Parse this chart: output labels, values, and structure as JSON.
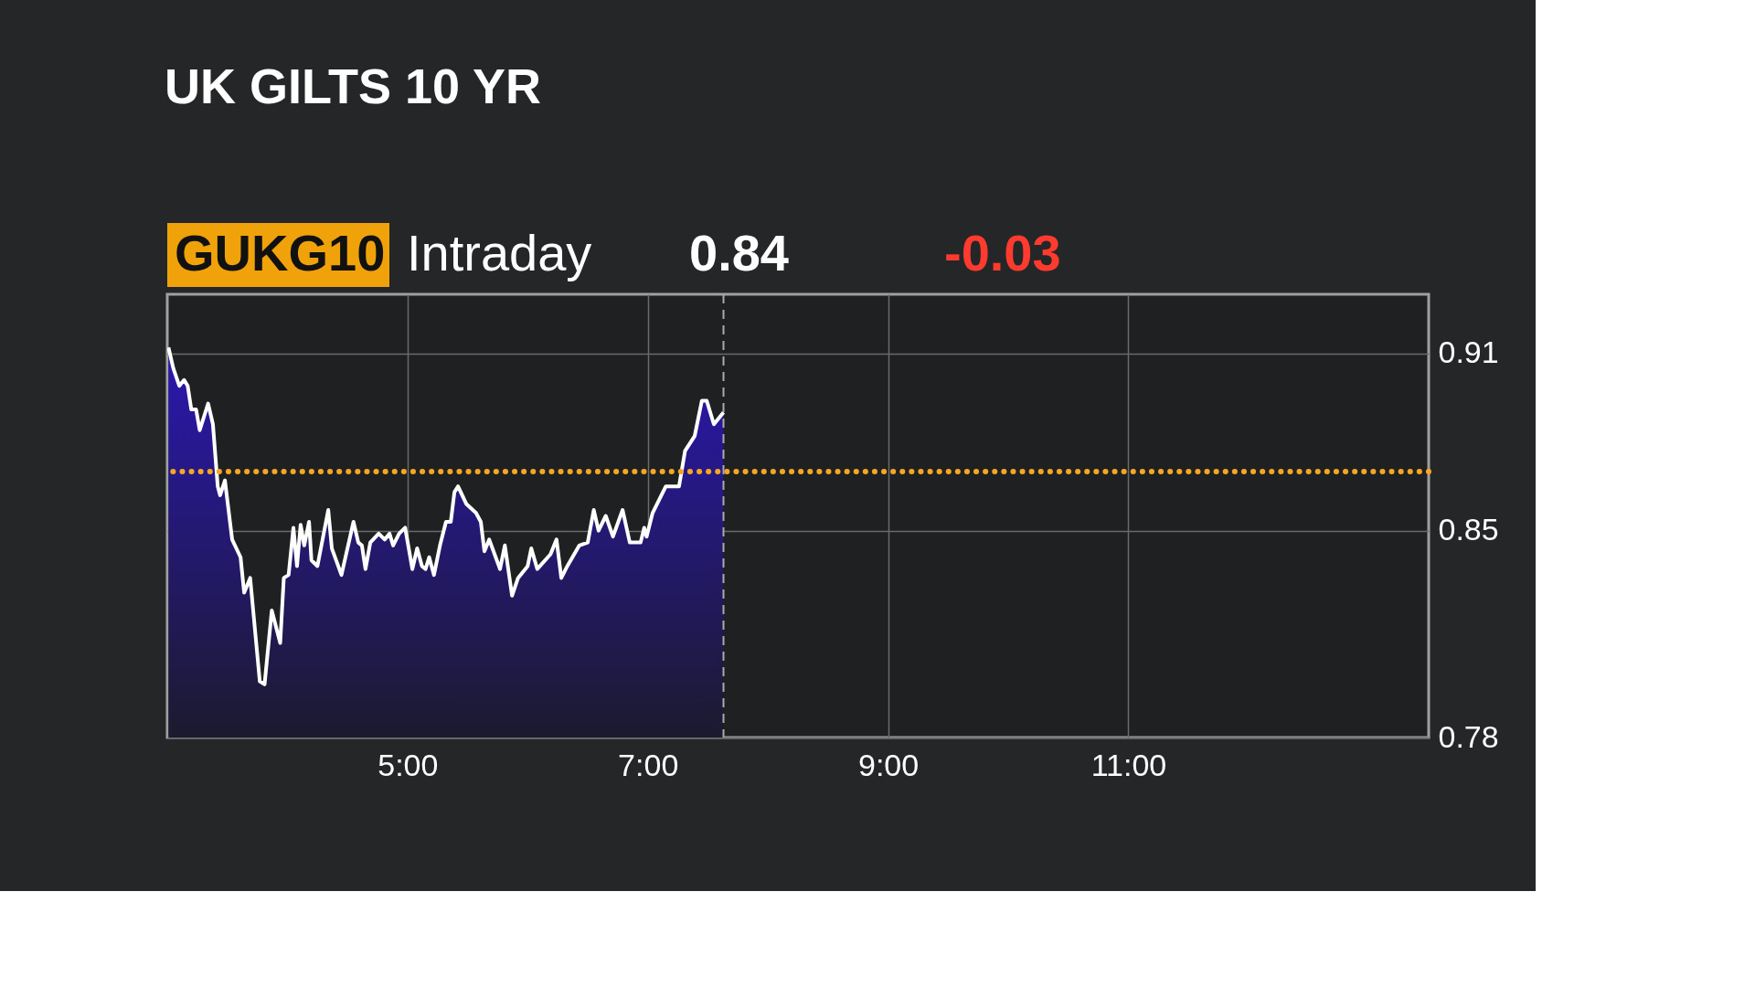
{
  "chart_data": {
    "type": "area",
    "title": "UK GILTS 10 YR",
    "annotations": [
      "GUKG10",
      "Intraday",
      "0.84",
      "-0.03"
    ],
    "x": [
      3.01,
      3.05,
      3.1,
      3.14,
      3.17,
      3.2,
      3.24,
      3.27,
      3.34,
      3.38,
      3.42,
      3.44,
      3.48,
      3.54,
      3.61,
      3.64,
      3.69,
      3.77,
      3.81,
      3.87,
      3.94,
      3.97,
      4.01,
      4.05,
      4.08,
      4.11,
      4.14,
      4.18,
      4.2,
      4.25,
      4.34,
      4.37,
      4.45,
      4.55,
      4.59,
      4.62,
      4.65,
      4.69,
      4.76,
      4.81,
      4.85,
      4.88,
      4.93,
      4.98,
      5.04,
      5.08,
      5.12,
      5.15,
      5.18,
      5.22,
      5.27,
      5.32,
      5.36,
      5.39,
      5.42,
      5.49,
      5.57,
      5.61,
      5.64,
      5.68,
      5.77,
      5.81,
      5.87,
      5.92,
      6.0,
      6.03,
      6.08,
      6.19,
      6.24,
      6.28,
      6.33,
      6.43,
      6.5,
      6.55,
      6.59,
      6.65,
      6.71,
      6.79,
      6.85,
      6.94,
      6.97,
      6.99,
      7.04,
      7.15,
      7.26,
      7.31,
      7.39,
      7.45,
      7.49,
      7.55,
      7.63
    ],
    "series": [
      {
        "color": "#ffffff",
        "values": [
          0.912,
          0.905,
          0.899,
          0.901,
          0.899,
          0.891,
          0.891,
          0.884,
          0.893,
          0.886,
          0.865,
          0.862,
          0.867,
          0.847,
          0.841,
          0.829,
          0.834,
          0.799,
          0.798,
          0.823,
          0.812,
          0.834,
          0.835,
          0.851,
          0.838,
          0.852,
          0.845,
          0.853,
          0.84,
          0.838,
          0.857,
          0.844,
          0.835,
          0.853,
          0.846,
          0.845,
          0.837,
          0.846,
          0.849,
          0.847,
          0.849,
          0.845,
          0.849,
          0.851,
          0.837,
          0.844,
          0.838,
          0.837,
          0.841,
          0.835,
          0.845,
          0.853,
          0.853,
          0.863,
          0.865,
          0.859,
          0.856,
          0.853,
          0.843,
          0.847,
          0.837,
          0.845,
          0.828,
          0.834,
          0.838,
          0.844,
          0.837,
          0.842,
          0.847,
          0.834,
          0.838,
          0.845,
          0.846,
          0.857,
          0.85,
          0.855,
          0.848,
          0.857,
          0.846,
          0.846,
          0.851,
          0.848,
          0.856,
          0.865,
          0.865,
          0.877,
          0.882,
          0.894,
          0.894,
          0.886,
          0.89
        ]
      }
    ],
    "xlim": [
      3.0,
      13.5
    ],
    "ylim": [
      0.78,
      0.93
    ],
    "xticks": [
      {
        "value": 5,
        "label": "5:00"
      },
      {
        "value": 7,
        "label": "7:00"
      },
      {
        "value": 9,
        "label": "9:00"
      },
      {
        "value": 11,
        "label": "11:00"
      }
    ],
    "yticks": [
      0.78,
      0.85,
      0.91
    ],
    "ref_lines": [
      {
        "axis": "y",
        "value": 0.87,
        "color": "#f5a623",
        "line_style": "dotted"
      },
      {
        "axis": "x",
        "value": 7.63,
        "color": "#aaaaaa",
        "line_style": "dashed"
      }
    ],
    "grid": true
  }
}
